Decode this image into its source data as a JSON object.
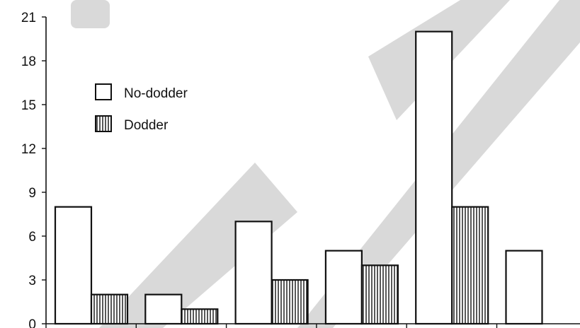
{
  "chart_data": {
    "type": "bar",
    "categories": [
      "",
      "",
      "",
      "",
      "",
      ""
    ],
    "series": [
      {
        "name": "No-dodder",
        "values": [
          8,
          2,
          7,
          5,
          20,
          5
        ],
        "fill": "none"
      },
      {
        "name": "Dodder",
        "values": [
          2,
          1,
          3,
          4,
          8,
          0
        ],
        "fill": "vertical-hatch"
      }
    ],
    "ylim": [
      0,
      21
    ],
    "yticks": [
      "0",
      "3",
      "6",
      "9",
      "12",
      "15",
      "18",
      "21"
    ],
    "grid": false,
    "legend_position": "top-left",
    "title": "",
    "xlabel": "",
    "ylabel": ""
  },
  "colors": {
    "stroke": "#111111",
    "watermark": "#d9d9d9"
  }
}
